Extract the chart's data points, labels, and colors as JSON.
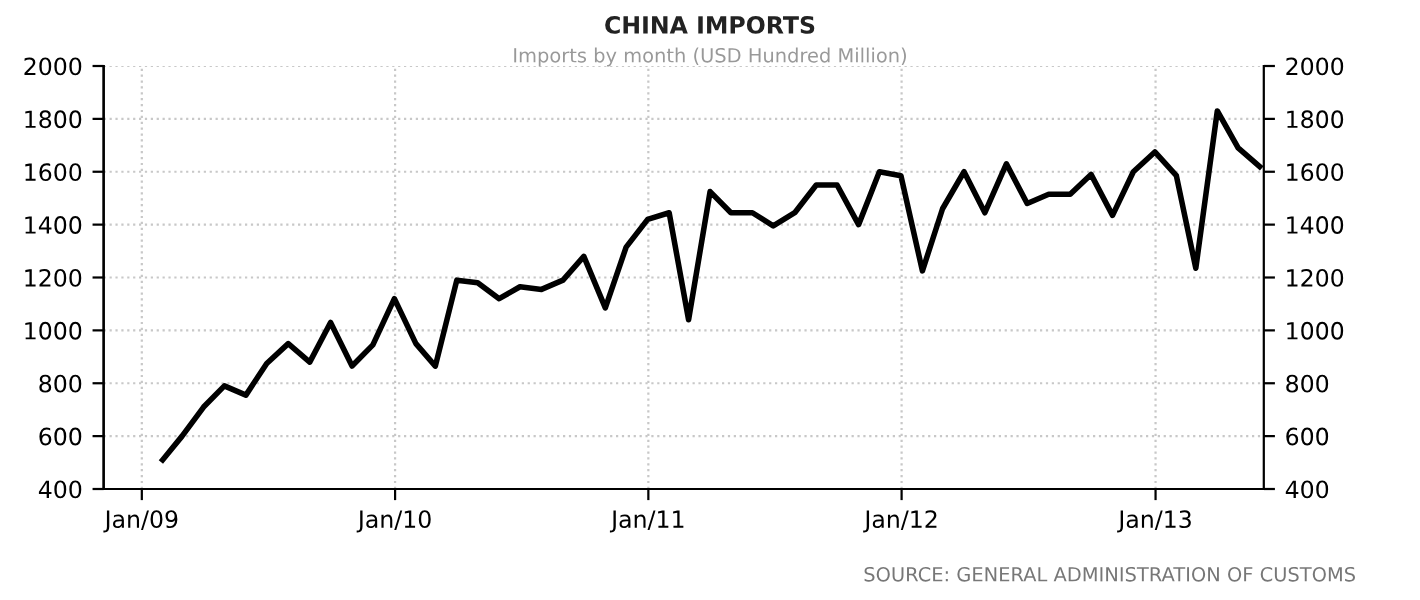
{
  "chart_data": {
    "type": "line",
    "title": "CHINA IMPORTS",
    "subtitle": "Imports by month (USD Hundred Million)",
    "annotations": [
      "SOURCE: GENERAL ADMINISTRATION OF CUSTOMS"
    ],
    "x": [
      "2009-01-31",
      "2009-02-28",
      "2009-03-31",
      "2009-04-30",
      "2009-05-31",
      "2009-06-30",
      "2009-07-31",
      "2009-08-31",
      "2009-09-30",
      "2009-10-31",
      "2009-11-30",
      "2009-12-31",
      "2010-01-31",
      "2010-02-28",
      "2010-03-31",
      "2010-04-30",
      "2010-05-31",
      "2010-06-30",
      "2010-07-31",
      "2010-08-31",
      "2010-09-30",
      "2010-10-31",
      "2010-11-30",
      "2010-12-31",
      "2011-01-31",
      "2011-02-28",
      "2011-03-31",
      "2011-04-30",
      "2011-05-31",
      "2011-06-30",
      "2011-07-31",
      "2011-08-31",
      "2011-09-30",
      "2011-10-31",
      "2011-11-30",
      "2011-12-31",
      "2012-01-31",
      "2012-02-29",
      "2012-03-31",
      "2012-04-30",
      "2012-05-31",
      "2012-06-30",
      "2012-07-31",
      "2012-08-31",
      "2012-09-30",
      "2012-10-31",
      "2012-11-30",
      "2012-12-31",
      "2013-01-31",
      "2013-02-28",
      "2013-03-31",
      "2013-04-30",
      "2013-05-31"
    ],
    "series": [
      {
        "color": "#000000",
        "axis": "y",
        "values": [
          510,
          600,
          710,
          790,
          755,
          875,
          950,
          880,
          1030,
          865,
          945,
          1120,
          950,
          865,
          1190,
          1180,
          1120,
          1165,
          1155,
          1190,
          1280,
          1085,
          1315,
          1420,
          1445,
          1040,
          1525,
          1445,
          1445,
          1395,
          1445,
          1550,
          1550,
          1400,
          1600,
          1585,
          1225,
          1460,
          1600,
          1445,
          1630,
          1480,
          1515,
          1515,
          1590,
          1435,
          1600,
          1675,
          1585,
          1235,
          1830,
          1690,
          1620
        ]
      }
    ],
    "xlim": [
      "2008-11-07",
      "2013-06-06"
    ],
    "xticks": [
      {
        "value": "2009-01-01",
        "label": "Jan/09"
      },
      {
        "value": "2010-01-01",
        "label": "Jan/10"
      },
      {
        "value": "2011-01-01",
        "label": "Jan/11"
      },
      {
        "value": "2012-01-01",
        "label": "Jan/12"
      },
      {
        "value": "2013-01-01",
        "label": "Jan/13"
      }
    ],
    "ylim": [
      400,
      2000
    ],
    "yticks": [
      400,
      600,
      800,
      1000,
      1200,
      1400,
      1600,
      1800,
      2000
    ],
    "y2lim": [
      400,
      2000
    ],
    "y2ticks": [
      400,
      600,
      800,
      1000,
      1200,
      1400,
      1600,
      1800,
      2000
    ],
    "grid": true,
    "marker": "none",
    "line_style": "solid"
  }
}
